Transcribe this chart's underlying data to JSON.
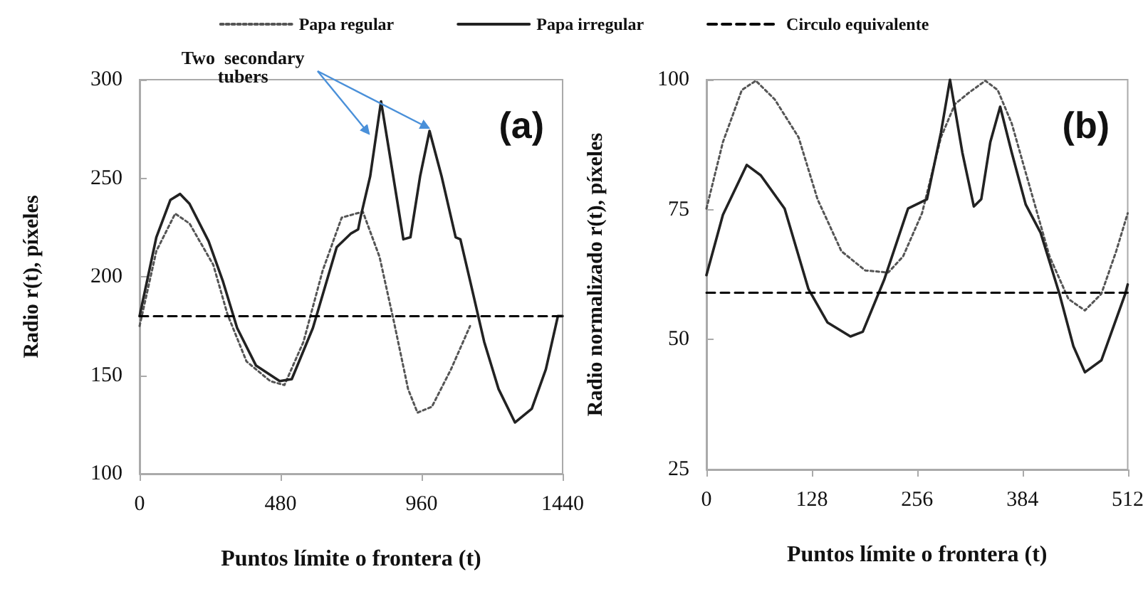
{
  "chart_data": [
    {
      "type": "line",
      "title": "(a)",
      "xlabel": "Puntos límite o frontera (t)",
      "ylabel": "Radio r(t), píxeles",
      "annotations": [
        {
          "text": "Two  secondary\ntubers",
          "x": 987,
          "y": 274
        }
      ],
      "legend": "top",
      "marker": "none",
      "xlim": [
        0,
        1440
      ],
      "xticks": [
        0,
        480,
        960,
        1440
      ],
      "ylim": [
        100,
        300
      ],
      "yticks": [
        100,
        150,
        200,
        250,
        300
      ],
      "series": [
        {
          "name": "Papa regular",
          "color": "#555555",
          "line_style": "dotted",
          "x": [
            0,
            57,
            121,
            170,
            251,
            299,
            364,
            445,
            493,
            558,
            623,
            688,
            760,
            817,
            866,
            914,
            946,
            995,
            1060,
            1125
          ],
          "values": [
            175,
            213,
            232,
            227,
            206,
            181,
            157,
            147,
            145,
            167,
            203,
            230,
            233,
            210,
            177,
            143,
            131,
            134,
            153,
            175
          ]
        },
        {
          "name": "Papa irregular",
          "color": "#222222",
          "line_style": "solid",
          "x": [
            0,
            57,
            105,
            138,
            170,
            235,
            283,
            332,
            396,
            477,
            518,
            590,
            671,
            720,
            744,
            752,
            785,
            822,
            858,
            898,
            922,
            955,
            987,
            1028,
            1076,
            1092,
            1125,
            1173,
            1222,
            1278,
            1335,
            1383,
            1424,
            1440
          ],
          "values": [
            180,
            220,
            239,
            242,
            237,
            218,
            198,
            174,
            155,
            147,
            148,
            174,
            215,
            222,
            224,
            230,
            251,
            289,
            256,
            219,
            220,
            251,
            274,
            251,
            220,
            219,
            198,
            167,
            143,
            126,
            133,
            153,
            180,
            180
          ]
        },
        {
          "name": "Circulo equivalente",
          "color": "#000000",
          "line_style": "dashed",
          "x": [
            0,
            1440
          ],
          "values": [
            180,
            180
          ]
        }
      ]
    },
    {
      "type": "line",
      "title": "(b)",
      "xlabel": "Puntos límite o frontera (t)",
      "ylabel": "Radio normalizado r(t), píxeles",
      "marker": "none",
      "xlim": [
        0,
        512
      ],
      "xticks": [
        0,
        128,
        256,
        384,
        512
      ],
      "ylim": [
        25,
        100
      ],
      "yticks": [
        25,
        50,
        75,
        100
      ],
      "series": [
        {
          "color": "#555555",
          "line_style": "dotted",
          "x": [
            0,
            20,
            43,
            60,
            83,
            112,
            135,
            164,
            193,
            221,
            239,
            262,
            285,
            302,
            319,
            339,
            354,
            371,
            394,
            417,
            440,
            460,
            480,
            498,
            512
          ],
          "values": [
            75.2,
            88,
            98,
            99.8,
            96.2,
            88.9,
            77,
            67,
            63.3,
            62.9,
            66,
            74.3,
            88.9,
            95.3,
            97.5,
            99.8,
            98,
            91.6,
            78.8,
            66,
            57.8,
            55.6,
            58.8,
            67,
            74.3
          ]
        },
        {
          "color": "#222222",
          "line_style": "solid",
          "x": [
            0,
            20,
            49,
            66,
            95,
            124,
            147,
            175,
            190,
            216,
            245,
            268,
            285,
            296,
            311,
            325,
            334,
            345,
            357,
            371,
            388,
            406,
            429,
            446,
            460,
            480,
            509,
            512
          ],
          "values": [
            62.4,
            74,
            83.6,
            81.6,
            75.2,
            59.7,
            53.3,
            50.6,
            51.5,
            61.5,
            75.2,
            77,
            89.8,
            100,
            86,
            75.6,
            77,
            88,
            94.8,
            86,
            76,
            70.6,
            58.8,
            48.7,
            43.7,
            46,
            58.8,
            60.6
          ]
        },
        {
          "color": "#000000",
          "line_style": "dashed",
          "x": [
            0,
            512
          ],
          "values": [
            59,
            59
          ]
        }
      ]
    }
  ]
}
